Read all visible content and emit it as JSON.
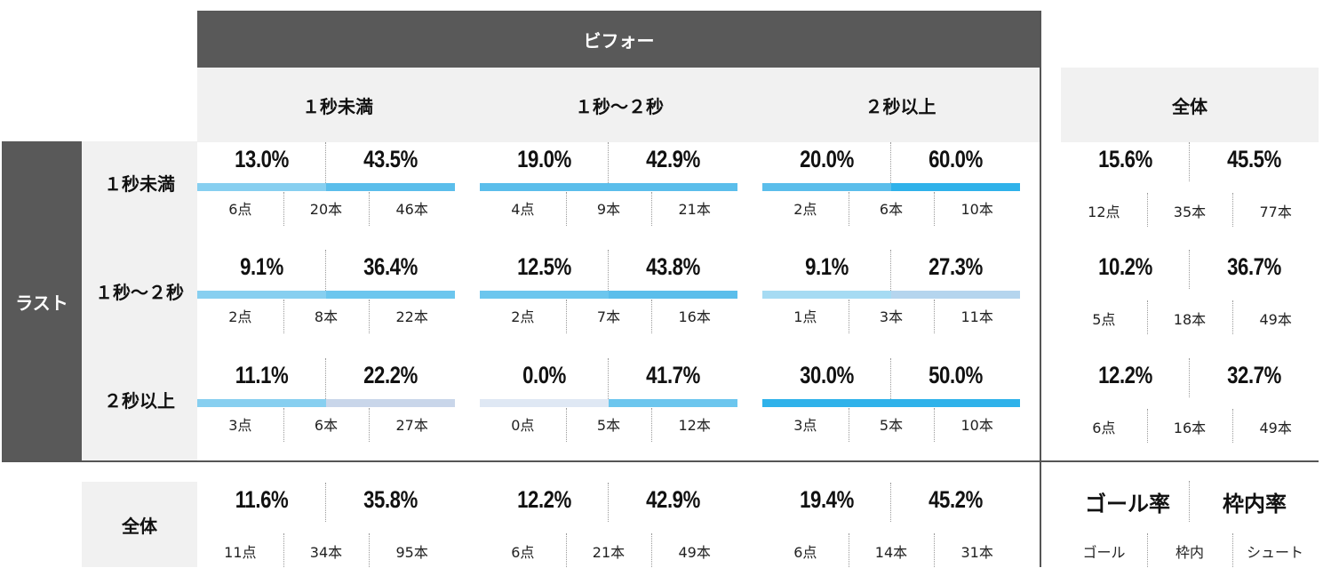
{
  "headers": {
    "before": "ビフォー",
    "last": "ラスト",
    "total_col": "全体",
    "total_row": "全体",
    "categories": [
      "１秒未満",
      "１秒〜２秒",
      "２秒以上"
    ]
  },
  "colors": {
    "header_dark": "#595959",
    "header_light": "#f1f1f1",
    "bar_colors": [
      "#a6dbf3",
      "#87cff0",
      "#6cc6ee",
      "#5bbeeb",
      "#2fb2ea",
      "#c9d6ea",
      "#dfe8f4"
    ]
  },
  "grid": [
    [
      {
        "goal_rate": "13.0%",
        "on_target_rate": "43.5%",
        "goals": "6点",
        "on_target": "20本",
        "shots": "46本",
        "left_color": "#87cff0",
        "right_color": "#5bbeeb"
      },
      {
        "goal_rate": "19.0%",
        "on_target_rate": "42.9%",
        "goals": "4点",
        "on_target": "9本",
        "shots": "21本",
        "left_color": "#5bbeeb",
        "right_color": "#5bbeeb"
      },
      {
        "goal_rate": "20.0%",
        "on_target_rate": "60.0%",
        "goals": "2点",
        "on_target": "6本",
        "shots": "10本",
        "left_color": "#5bbeeb",
        "right_color": "#2fb2ea"
      }
    ],
    [
      {
        "goal_rate": "9.1%",
        "on_target_rate": "36.4%",
        "goals": "2点",
        "on_target": "8本",
        "shots": "22本",
        "left_color": "#87cff0",
        "right_color": "#6cc6ee"
      },
      {
        "goal_rate": "12.5%",
        "on_target_rate": "43.8%",
        "goals": "2点",
        "on_target": "7本",
        "shots": "16本",
        "left_color": "#6cc6ee",
        "right_color": "#5bbeeb"
      },
      {
        "goal_rate": "9.1%",
        "on_target_rate": "27.3%",
        "goals": "1点",
        "on_target": "3本",
        "shots": "11本",
        "left_color": "#a6dbf3",
        "right_color": "#b5d5ee"
      }
    ],
    [
      {
        "goal_rate": "11.1%",
        "on_target_rate": "22.2%",
        "goals": "3点",
        "on_target": "6本",
        "shots": "27本",
        "left_color": "#87cff0",
        "right_color": "#c9d6ea"
      },
      {
        "goal_rate": "0.0%",
        "on_target_rate": "41.7%",
        "goals": "0点",
        "on_target": "5本",
        "shots": "12本",
        "left_color": "#dfe8f4",
        "right_color": "#6cc6ee"
      },
      {
        "goal_rate": "30.0%",
        "on_target_rate": "50.0%",
        "goals": "3点",
        "on_target": "5本",
        "shots": "10本",
        "left_color": "#2fb2ea",
        "right_color": "#2fb2ea"
      }
    ]
  ],
  "row_totals": [
    {
      "goal_rate": "15.6%",
      "on_target_rate": "45.5%",
      "goals": "12点",
      "on_target": "35本",
      "shots": "77本"
    },
    {
      "goal_rate": "10.2%",
      "on_target_rate": "36.7%",
      "goals": "5点",
      "on_target": "18本",
      "shots": "49本"
    },
    {
      "goal_rate": "12.2%",
      "on_target_rate": "32.7%",
      "goals": "6点",
      "on_target": "16本",
      "shots": "49本"
    }
  ],
  "col_totals": [
    {
      "goal_rate": "11.6%",
      "on_target_rate": "35.8%",
      "goals": "11点",
      "on_target": "34本",
      "shots": "95本"
    },
    {
      "goal_rate": "12.2%",
      "on_target_rate": "42.9%",
      "goals": "6点",
      "on_target": "21本",
      "shots": "49本"
    },
    {
      "goal_rate": "19.4%",
      "on_target_rate": "45.2%",
      "goals": "6点",
      "on_target": "14本",
      "shots": "31本"
    }
  ],
  "legend": {
    "goal_rate": "ゴール率",
    "on_target_rate": "枠内率",
    "goal": "ゴール",
    "on_target": "枠内",
    "shot": "シュート"
  }
}
